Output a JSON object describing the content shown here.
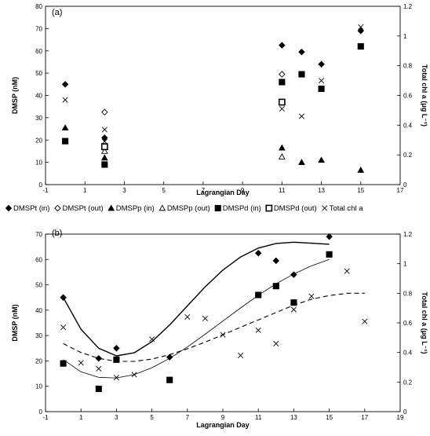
{
  "chart_data": [
    {
      "type": "scatter",
      "title": "",
      "panel_label": "(a)",
      "xlabel": "Lagrangian Day",
      "ylabel": "DMSP (nM)",
      "y2label": "Total chl a (μg L⁻¹)",
      "xlim": [
        -1,
        17
      ],
      "ylim": [
        0,
        80
      ],
      "y2lim": [
        0,
        1.2
      ],
      "xticks": [
        -1,
        1,
        3,
        5,
        7,
        9,
        11,
        13,
        15,
        17
      ],
      "yticks": [
        0,
        10,
        20,
        30,
        40,
        50,
        60,
        70,
        80
      ],
      "y2ticks": [
        0,
        0.2,
        0.4,
        0.6,
        0.8,
        1,
        1.2
      ],
      "xtick_labels": [
        "-1",
        "1",
        "3",
        "5",
        "7",
        "9",
        "11",
        "13",
        "15",
        "17"
      ],
      "ytick_labels": [
        "0",
        "10",
        "20",
        "30",
        "40",
        "50",
        "60",
        "70",
        "80"
      ],
      "y2tick_labels": [
        "0",
        "0.2",
        "0.4",
        "0.6",
        "0.8",
        "1",
        "1.2"
      ],
      "grid": false,
      "legend_position": "bottom",
      "series": [
        {
          "name": "DMSPt (in)",
          "marker": "diamond-filled",
          "axis": "left",
          "points": [
            [
              0,
              45
            ],
            [
              2,
              21
            ],
            [
              11,
              62.5
            ],
            [
              12,
              59.5
            ],
            [
              13,
              54
            ],
            [
              15,
              69
            ]
          ]
        },
        {
          "name": "DMSPt (out)",
          "marker": "diamond-open",
          "axis": "left",
          "points": [
            [
              2,
              32.5
            ],
            [
              11,
              49.5
            ]
          ]
        },
        {
          "name": "DMSPp (in)",
          "marker": "triangle-filled",
          "axis": "left",
          "points": [
            [
              0,
              25.5
            ],
            [
              2,
              12
            ],
            [
              11,
              16.5
            ],
            [
              12,
              10
            ],
            [
              13,
              11
            ],
            [
              15,
              6.5
            ]
          ]
        },
        {
          "name": "DMSPp (out)",
          "marker": "triangle-open",
          "axis": "left",
          "points": [
            [
              2,
              15
            ],
            [
              11,
              12.5
            ]
          ]
        },
        {
          "name": "DMSPd (in)",
          "marker": "square-filled",
          "axis": "left",
          "points": [
            [
              0,
              19.5
            ],
            [
              2,
              9
            ],
            [
              11,
              46
            ],
            [
              12,
              49.5
            ],
            [
              13,
              43
            ],
            [
              15,
              62
            ]
          ]
        },
        {
          "name": "DMSPd (out)",
          "marker": "square-open",
          "axis": "left",
          "points": [
            [
              2,
              17
            ],
            [
              11,
              37
            ]
          ]
        },
        {
          "name": "Total chl a",
          "marker": "x",
          "axis": "right",
          "points": [
            [
              0,
              0.57
            ],
            [
              2,
              0.37
            ],
            [
              2,
              0.29
            ],
            [
              11,
              0.51
            ],
            [
              12,
              0.46
            ],
            [
              13,
              0.7
            ],
            [
              15,
              1.06
            ]
          ]
        }
      ]
    },
    {
      "type": "scatter",
      "title": "",
      "panel_label": "(b)",
      "xlabel": "Lagrangian Day",
      "ylabel": "DMSP (nM)",
      "y2label": "Total chl a (μg L⁻¹)",
      "xlim": [
        -1,
        19
      ],
      "ylim": [
        0,
        70
      ],
      "y2lim": [
        0,
        1.2
      ],
      "xticks": [
        -1,
        1,
        3,
        5,
        7,
        9,
        11,
        13,
        15,
        17,
        19
      ],
      "yticks": [
        0,
        10,
        20,
        30,
        40,
        50,
        60,
        70
      ],
      "y2ticks": [
        0,
        0.2,
        0.4,
        0.6,
        0.8,
        1,
        1.2
      ],
      "xtick_labels": [
        "-1",
        "1",
        "3",
        "5",
        "7",
        "9",
        "11",
        "13",
        "15",
        "17",
        "19"
      ],
      "ytick_labels": [
        "0",
        "10",
        "20",
        "30",
        "40",
        "50",
        "60",
        "70"
      ],
      "y2tick_labels": [
        "0",
        "0.2",
        "0.4",
        "0.6",
        "0.8",
        "1",
        "1.2"
      ],
      "grid": false,
      "series": [
        {
          "name": "DMSPt (in)",
          "marker": "diamond-filled",
          "axis": "left",
          "points": [
            [
              0,
              45
            ],
            [
              2,
              21
            ],
            [
              3,
              25
            ],
            [
              6,
              21.5
            ],
            [
              11,
              62.5
            ],
            [
              12,
              59.5
            ],
            [
              13,
              54
            ],
            [
              15,
              69
            ]
          ]
        },
        {
          "name": "DMSPd (in)",
          "marker": "square-filled",
          "axis": "left",
          "points": [
            [
              0,
              19
            ],
            [
              2,
              9
            ],
            [
              3,
              20.5
            ],
            [
              6,
              12.5
            ],
            [
              11,
              46
            ],
            [
              12,
              49.5
            ],
            [
              13,
              43
            ],
            [
              15,
              62
            ]
          ]
        },
        {
          "name": "Total chl a",
          "marker": "x",
          "axis": "right",
          "points": [
            [
              0,
              0.57
            ],
            [
              1,
              0.33
            ],
            [
              2,
              0.29
            ],
            [
              3,
              0.23
            ],
            [
              4,
              0.25
            ],
            [
              5,
              0.49
            ],
            [
              7,
              0.64
            ],
            [
              8,
              0.63
            ],
            [
              9,
              0.52
            ],
            [
              10,
              0.38
            ],
            [
              11,
              0.55
            ],
            [
              12,
              0.46
            ],
            [
              13,
              0.69
            ],
            [
              14,
              0.78
            ],
            [
              16,
              0.95
            ],
            [
              17,
              0.61
            ]
          ]
        }
      ],
      "fit_lines": [
        {
          "style": "solid-thick",
          "axis": "left",
          "x": [
            0,
            1,
            2,
            3,
            4,
            5,
            6,
            7,
            8,
            9,
            10,
            11,
            12,
            13,
            14,
            15
          ],
          "y": [
            45,
            32.5,
            25,
            22,
            23.2,
            27.6,
            34.2,
            41.7,
            49.2,
            55.8,
            61,
            64.5,
            66.3,
            66.8,
            66.4,
            66
          ]
        },
        {
          "style": "solid-thin",
          "axis": "left",
          "x": [
            0,
            1,
            2,
            3,
            4,
            5,
            6,
            7,
            8,
            9,
            10,
            11,
            12,
            13,
            14,
            15
          ],
          "y": [
            20.5,
            15.7,
            13.5,
            13.3,
            14.6,
            17.3,
            21,
            25.5,
            30.5,
            35.7,
            40.9,
            45.9,
            50.4,
            54.3,
            57.5,
            60
          ]
        },
        {
          "style": "dashed",
          "axis": "right",
          "x": [
            0,
            1,
            2,
            3,
            4,
            5,
            6,
            7,
            8,
            9,
            10,
            11,
            12,
            13,
            14,
            15,
            16,
            17
          ],
          "y": [
            0.46,
            0.4,
            0.36,
            0.34,
            0.34,
            0.355,
            0.385,
            0.425,
            0.47,
            0.52,
            0.57,
            0.62,
            0.67,
            0.72,
            0.76,
            0.785,
            0.8,
            0.8
          ]
        }
      ]
    }
  ]
}
